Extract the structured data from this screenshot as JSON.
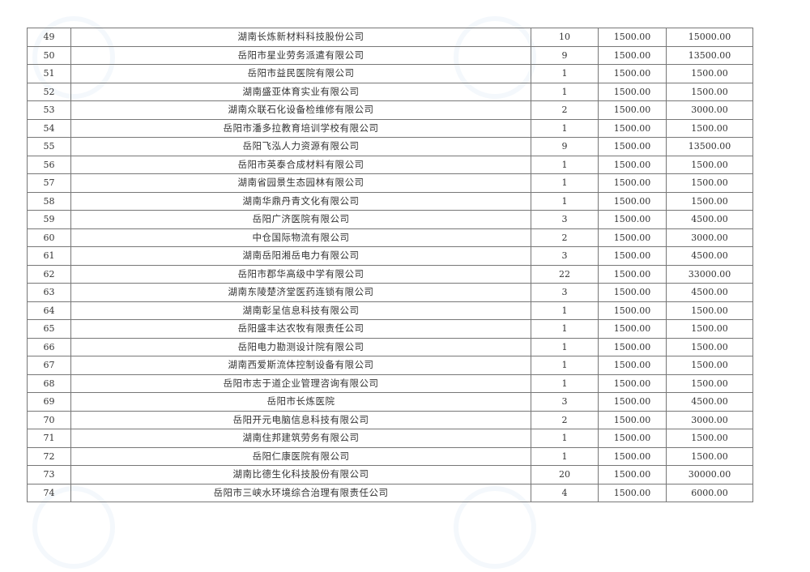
{
  "table": {
    "rows": [
      {
        "no": "49",
        "name": "湖南长炼新材料科技股份公司",
        "count": "10",
        "rate": "1500.00",
        "total": "15000.00"
      },
      {
        "no": "50",
        "name": "岳阳市星业劳务派遣有限公司",
        "count": "9",
        "rate": "1500.00",
        "total": "13500.00"
      },
      {
        "no": "51",
        "name": "岳阳市益民医院有限公司",
        "count": "1",
        "rate": "1500.00",
        "total": "1500.00"
      },
      {
        "no": "52",
        "name": "湖南盛亚体育实业有限公司",
        "count": "1",
        "rate": "1500.00",
        "total": "1500.00"
      },
      {
        "no": "53",
        "name": "湖南众联石化设备检维修有限公司",
        "count": "2",
        "rate": "1500.00",
        "total": "3000.00"
      },
      {
        "no": "54",
        "name": "岳阳市潘多拉教育培训学校有限公司",
        "count": "1",
        "rate": "1500.00",
        "total": "1500.00"
      },
      {
        "no": "55",
        "name": "岳阳飞泓人力资源有限公司",
        "count": "9",
        "rate": "1500.00",
        "total": "13500.00"
      },
      {
        "no": "56",
        "name": "岳阳市英泰合成材料有限公司",
        "count": "1",
        "rate": "1500.00",
        "total": "1500.00"
      },
      {
        "no": "57",
        "name": "湖南省园景生态园林有限公司",
        "count": "1",
        "rate": "1500.00",
        "total": "1500.00"
      },
      {
        "no": "58",
        "name": "湖南华鼎丹青文化有限公司",
        "count": "1",
        "rate": "1500.00",
        "total": "1500.00"
      },
      {
        "no": "59",
        "name": "岳阳广济医院有限公司",
        "count": "3",
        "rate": "1500.00",
        "total": "4500.00"
      },
      {
        "no": "60",
        "name": "中仓国际物流有限公司",
        "count": "2",
        "rate": "1500.00",
        "total": "3000.00"
      },
      {
        "no": "61",
        "name": "湖南岳阳湘岳电力有限公司",
        "count": "3",
        "rate": "1500.00",
        "total": "4500.00"
      },
      {
        "no": "62",
        "name": "岳阳市郡华高级中学有限公司",
        "count": "22",
        "rate": "1500.00",
        "total": "33000.00"
      },
      {
        "no": "63",
        "name": "湖南东陵楚济堂医药连锁有限公司",
        "count": "3",
        "rate": "1500.00",
        "total": "4500.00"
      },
      {
        "no": "64",
        "name": "湖南彰呈信息科技有限公司",
        "count": "1",
        "rate": "1500.00",
        "total": "1500.00"
      },
      {
        "no": "65",
        "name": "岳阳盛丰达农牧有限责任公司",
        "count": "1",
        "rate": "1500.00",
        "total": "1500.00"
      },
      {
        "no": "66",
        "name": "岳阳电力勘测设计院有限公司",
        "count": "1",
        "rate": "1500.00",
        "total": "1500.00"
      },
      {
        "no": "67",
        "name": "湖南西爱斯流体控制设备有限公司",
        "count": "1",
        "rate": "1500.00",
        "total": "1500.00"
      },
      {
        "no": "68",
        "name": "岳阳市志于道企业管理咨询有限公司",
        "count": "1",
        "rate": "1500.00",
        "total": "1500.00"
      },
      {
        "no": "69",
        "name": "岳阳市长炼医院",
        "count": "3",
        "rate": "1500.00",
        "total": "4500.00"
      },
      {
        "no": "70",
        "name": "岳阳开元电脑信息科技有限公司",
        "count": "2",
        "rate": "1500.00",
        "total": "3000.00"
      },
      {
        "no": "71",
        "name": "湖南住邦建筑劳务有限公司",
        "count": "1",
        "rate": "1500.00",
        "total": "1500.00"
      },
      {
        "no": "72",
        "name": "岳阳仁康医院有限公司",
        "count": "1",
        "rate": "1500.00",
        "total": "1500.00"
      },
      {
        "no": "73",
        "name": "湖南比德生化科技股份有限公司",
        "count": "20",
        "rate": "1500.00",
        "total": "30000.00"
      },
      {
        "no": "74",
        "name": "岳阳市三峡水环境综合治理有限责任公司",
        "count": "4",
        "rate": "1500.00",
        "total": "6000.00"
      }
    ]
  }
}
